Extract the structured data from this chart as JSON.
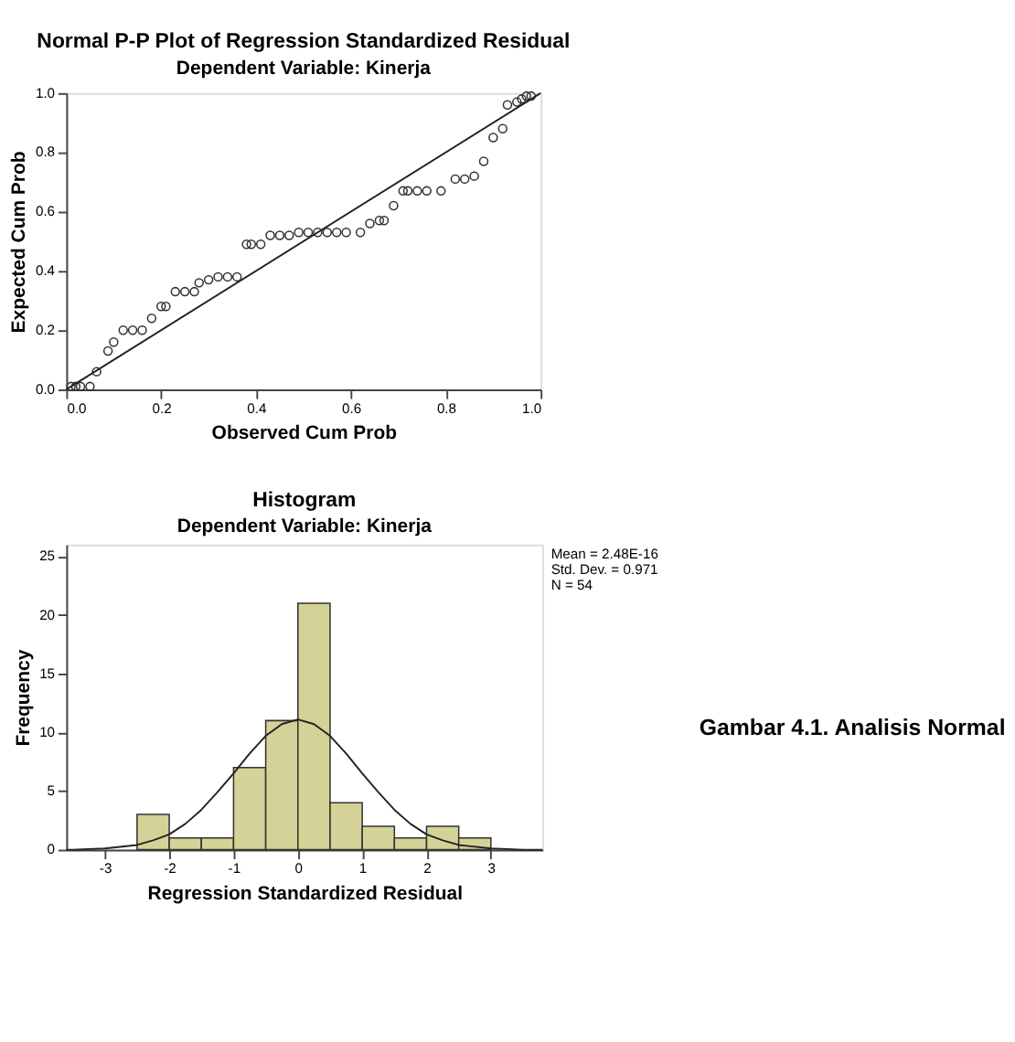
{
  "chart_data": [
    {
      "type": "scatter",
      "title": "Normal P-P Plot of Regression Standardized Residual",
      "subtitle": "Dependent Variable: Kinerja",
      "xlabel": "Observed Cum Prob",
      "ylabel": "Expected Cum Prob",
      "series": [
        {
          "type": "scatter",
          "color": "#333333",
          "marker": "circle",
          "x": [
            0.01,
            0.02,
            0.03,
            0.05,
            0.064,
            0.088,
            0.1,
            0.12,
            0.14,
            0.16,
            0.18,
            0.2,
            0.21,
            0.23,
            0.25,
            0.27,
            0.28,
            0.3,
            0.32,
            0.34,
            0.36,
            0.38,
            0.39,
            0.41,
            0.43,
            0.45,
            0.47,
            0.49,
            0.51,
            0.53,
            0.55,
            0.57,
            0.59,
            0.62,
            0.64,
            0.66,
            0.67,
            0.69,
            0.71,
            0.72,
            0.74,
            0.76,
            0.79,
            0.82,
            0.84,
            0.86,
            0.88,
            0.9,
            0.92,
            0.93,
            0.95,
            0.96,
            0.97,
            0.98
          ],
          "values": [
            0.01,
            0.01,
            0.01,
            0.01,
            0.06,
            0.13,
            0.16,
            0.2,
            0.2,
            0.2,
            0.24,
            0.28,
            0.28,
            0.33,
            0.33,
            0.33,
            0.36,
            0.37,
            0.38,
            0.38,
            0.38,
            0.49,
            0.49,
            0.49,
            0.52,
            0.52,
            0.52,
            0.53,
            0.53,
            0.53,
            0.53,
            0.53,
            0.53,
            0.53,
            0.56,
            0.57,
            0.57,
            0.62,
            0.67,
            0.67,
            0.67,
            0.67,
            0.67,
            0.71,
            0.71,
            0.72,
            0.77,
            0.85,
            0.88,
            0.96,
            0.97,
            0.98,
            0.99,
            0.99
          ]
        },
        {
          "type": "line",
          "color": "#222222",
          "x": [
            0,
            1
          ],
          "values": [
            0,
            1
          ]
        }
      ],
      "xlim": [
        0,
        1
      ],
      "ylim": [
        0,
        1
      ],
      "xticks": [
        {
          "value": 0,
          "label": "0.0"
        },
        0.2,
        0.4,
        0.6,
        0.8,
        {
          "value": 1,
          "label": "1.0"
        }
      ],
      "yticks": [
        {
          "value": 0,
          "label": "0.0"
        },
        0.2,
        0.4,
        0.6,
        0.8,
        {
          "value": 1,
          "label": "1.0"
        }
      ],
      "grid": false
    },
    {
      "type": "histogram",
      "title": "Histogram",
      "subtitle": "Dependent Variable: Kinerja",
      "xlabel": "Regression Standardized Residual",
      "ylabel": "Frequency",
      "bins": [
        -2.5,
        -2,
        -1.5,
        -1,
        -0.5,
        0,
        0.5,
        1,
        1.5,
        2,
        2.5,
        3
      ],
      "values": [
        3,
        1,
        1,
        7,
        11,
        21,
        4,
        2,
        1,
        2,
        1
      ],
      "color": "#d4d296",
      "series": [
        {
          "type": "line",
          "color": "#222222",
          "x": [
            -3.6,
            -3.5,
            -3,
            -2.5,
            -2.25,
            -2,
            -1.75,
            -1.5,
            -1.25,
            -1,
            -0.75,
            -0.5,
            -0.25,
            0,
            0.25,
            0.5,
            0.75,
            1,
            1.25,
            1.5,
            1.75,
            2,
            2.25,
            2.5,
            3,
            3.5,
            3.8
          ],
          "values": [
            0,
            0,
            0.1,
            0.4,
            0.8,
            1.3,
            2.2,
            3.4,
            4.9,
            6.5,
            8.2,
            9.7,
            10.7,
            11.1,
            10.7,
            9.7,
            8.2,
            6.5,
            4.9,
            3.4,
            2.2,
            1.3,
            0.8,
            0.4,
            0.1,
            0,
            0
          ]
        }
      ],
      "xlim": [
        -3.6,
        3.8
      ],
      "ylim": [
        0,
        26
      ],
      "xticks": [
        -3,
        -2,
        -1,
        0,
        1,
        2,
        3
      ],
      "yticks": [
        0,
        5,
        10,
        15,
        20,
        25
      ],
      "grid": false,
      "annotations": [
        "Mean = 2.48E-16",
        "Std. Dev. = 0.971",
        "N = 54",
        "Gambar 4.1. Analisis Normal"
      ]
    }
  ]
}
